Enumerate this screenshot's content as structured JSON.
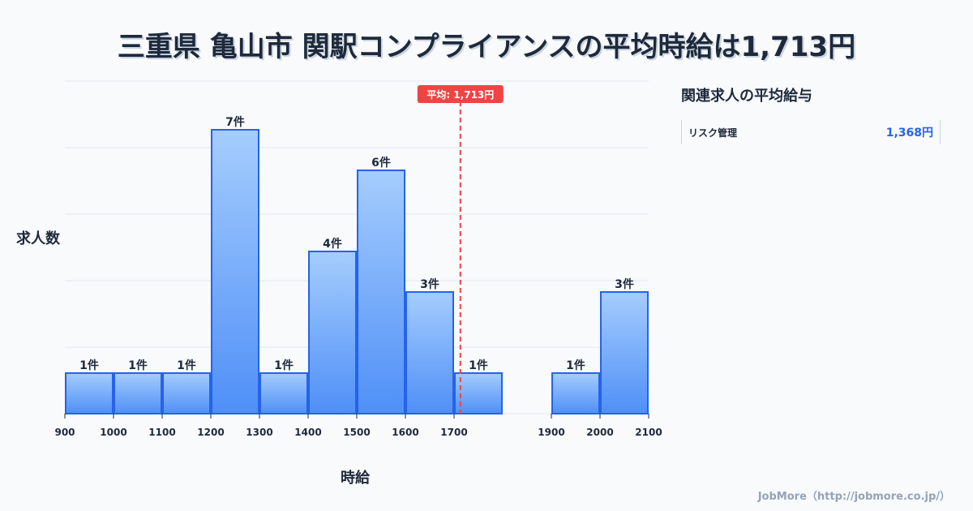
{
  "title": "三重県 亀山市 関駅コンプライアンスの平均時給は1,713円",
  "chart_data": {
    "type": "bar",
    "title": "三重県 亀山市 関駅コンプライアンスの平均時給は1,713円",
    "xlabel": "時給",
    "ylabel": "求人数",
    "bins": [
      {
        "from": 900,
        "to": 1000,
        "count": 1,
        "label": "1件"
      },
      {
        "from": 1000,
        "to": 1100,
        "count": 1,
        "label": "1件"
      },
      {
        "from": 1100,
        "to": 1200,
        "count": 1,
        "label": "1件"
      },
      {
        "from": 1200,
        "to": 1300,
        "count": 7,
        "label": "7件"
      },
      {
        "from": 1300,
        "to": 1400,
        "count": 1,
        "label": "1件"
      },
      {
        "from": 1400,
        "to": 1500,
        "count": 4,
        "label": "4件"
      },
      {
        "from": 1500,
        "to": 1600,
        "count": 6,
        "label": "6件"
      },
      {
        "from": 1600,
        "to": 1700,
        "count": 3,
        "label": "3件"
      },
      {
        "from": 1700,
        "to": 1800,
        "count": 1,
        "label": "1件"
      },
      {
        "from": 1900,
        "to": 2000,
        "count": 1,
        "label": "1件"
      },
      {
        "from": 2000,
        "to": 2100,
        "count": 3,
        "label": "3件"
      }
    ],
    "xticks": [
      "900",
      "1000",
      "1100",
      "1200",
      "1300",
      "1400",
      "1500",
      "1600",
      "1700",
      "1900",
      "2000",
      "2100"
    ],
    "xlim": [
      900,
      2100
    ],
    "ylim": [
      0,
      8.2
    ],
    "mean": 1713,
    "mean_label": "平均: 1,713円",
    "grid": true
  },
  "sidebar": {
    "title": "関連求人の平均給与",
    "items": [
      {
        "name": "リスク管理",
        "value": "1,368円"
      }
    ]
  },
  "footer": "JobMore（http://jobmore.co.jp/）",
  "colors": {
    "bar": "#3b82f6",
    "mean": "#ef4444",
    "text": "#1e293b",
    "accent": "#2563eb"
  }
}
